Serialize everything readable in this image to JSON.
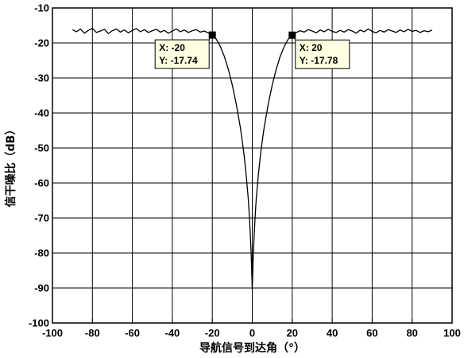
{
  "chart_data": {
    "type": "line",
    "xlabel": "导航信号到达角（°）",
    "ylabel": "信干噪比（dB）",
    "xlim": [
      -100,
      100
    ],
    "ylim": [
      -100,
      -10
    ],
    "xticks": [
      -100,
      -80,
      -60,
      -40,
      -20,
      0,
      20,
      40,
      60,
      80,
      100
    ],
    "yticks": [
      -10,
      -20,
      -30,
      -40,
      -50,
      -60,
      -70,
      -80,
      -90,
      -100
    ],
    "grid": true,
    "line_color": "#000000",
    "series": [
      {
        "name": "",
        "x": [
          -90,
          -88,
          -86,
          -84,
          -82,
          -80,
          -78,
          -76,
          -74,
          -72,
          -70,
          -68,
          -66,
          -64,
          -62,
          -60,
          -58,
          -56,
          -54,
          -52,
          -50,
          -48,
          -46,
          -44,
          -42,
          -40,
          -38,
          -36,
          -34,
          -32,
          -30,
          -28,
          -26,
          -24,
          -22,
          -20,
          -18,
          -16,
          -14,
          -12,
          -10,
          -8,
          -6,
          -5,
          -4,
          -3,
          -2,
          -1.5,
          -1,
          -0.5,
          0,
          0.5,
          1,
          1.5,
          2,
          3,
          4,
          5,
          6,
          8,
          10,
          12,
          14,
          16,
          18,
          20,
          22,
          24,
          26,
          28,
          30,
          32,
          34,
          36,
          38,
          40,
          42,
          44,
          46,
          48,
          50,
          52,
          54,
          56,
          58,
          60,
          62,
          64,
          66,
          68,
          70,
          72,
          74,
          76,
          78,
          80,
          82,
          84,
          86,
          88,
          90
        ],
        "y": [
          -16.2,
          -16.8,
          -16.0,
          -17.2,
          -16.4,
          -15.8,
          -17.0,
          -16.6,
          -16.1,
          -17.3,
          -16.5,
          -16.0,
          -16.9,
          -16.3,
          -17.1,
          -16.4,
          -15.9,
          -16.8,
          -16.2,
          -17.0,
          -16.5,
          -16.1,
          -16.9,
          -16.4,
          -17.2,
          -16.6,
          -16.0,
          -16.8,
          -16.3,
          -17.0,
          -16.5,
          -16.2,
          -16.9,
          -16.6,
          -17.1,
          -17.74,
          -18.9,
          -21.0,
          -23.8,
          -27.5,
          -32.0,
          -37.5,
          -44.0,
          -48.0,
          -52.5,
          -58.0,
          -64.5,
          -69.0,
          -74.5,
          -81.0,
          -90.5,
          -81.0,
          -74.5,
          -69.0,
          -64.5,
          -58.0,
          -52.5,
          -48.0,
          -44.0,
          -37.5,
          -32.0,
          -27.5,
          -23.8,
          -21.0,
          -18.9,
          -17.78,
          -17.0,
          -16.5,
          -16.9,
          -16.2,
          -16.6,
          -17.1,
          -16.3,
          -16.8,
          -16.1,
          -16.7,
          -17.0,
          -16.4,
          -16.9,
          -16.2,
          -16.6,
          -17.2,
          -16.3,
          -16.8,
          -16.0,
          -16.7,
          -17.1,
          -16.4,
          -16.9,
          -16.2,
          -16.6,
          -17.0,
          -16.3,
          -16.8,
          -16.1,
          -16.7,
          -16.4,
          -17.0,
          -16.5,
          -16.8,
          -16.3
        ]
      }
    ],
    "datatips": [
      {
        "x": -20,
        "y": -17.74,
        "x_text": "X: -20",
        "y_text": "Y: -17.74",
        "box_side": "left"
      },
      {
        "x": 20,
        "y": -17.78,
        "x_text": "X: 20",
        "y_text": "Y: -17.78",
        "box_side": "right"
      }
    ]
  }
}
